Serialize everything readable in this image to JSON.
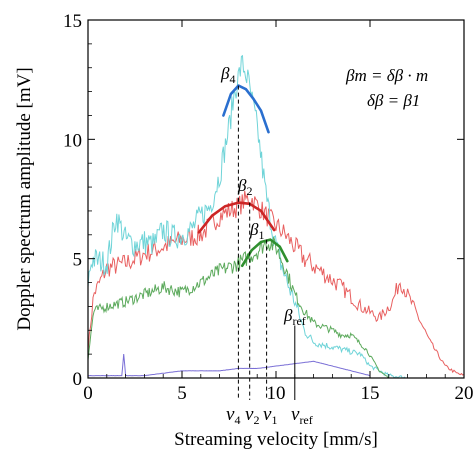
{
  "chart_data": {
    "type": "line",
    "xlabel": "Streaming velocity [mm/s]",
    "ylabel": "Doppler spectrum amplitude [mV]",
    "xlim": [
      0,
      20
    ],
    "ylim": [
      0,
      15
    ],
    "xticks": [
      0,
      5,
      10,
      15,
      20
    ],
    "yticks": [
      0,
      5,
      10,
      15
    ],
    "xtick_labels": [
      "0",
      "5",
      "10",
      "15",
      "20"
    ],
    "ytick_labels": [
      "0",
      "5",
      "10",
      "15"
    ],
    "grid": false,
    "series": [
      {
        "color": "#e86060",
        "x": [
          0,
          0.3,
          1,
          2,
          3,
          4,
          5,
          6,
          7,
          8,
          8.6,
          9.5,
          10.5,
          11.5,
          12.5,
          13.5,
          14.5,
          15.5,
          16.2,
          16.6,
          17.3,
          18.2,
          19,
          19.6,
          20
        ],
        "y": [
          1.2,
          3.5,
          4.6,
          4.8,
          5.2,
          5.5,
          5.8,
          6.0,
          6.8,
          7.2,
          7.6,
          6.8,
          6.0,
          5.0,
          4.4,
          3.8,
          3.0,
          2.5,
          3.2,
          4.1,
          3.0,
          1.5,
          0.5,
          0.2,
          0.1
        ]
      },
      {
        "color": "#70d4d8",
        "x": [
          0,
          0.2,
          1,
          1.5,
          2,
          2.5,
          3,
          3.5,
          4,
          4.5,
          5,
          5.5,
          6,
          6.5,
          7,
          7.5,
          7.8,
          8.2,
          8.5,
          9,
          9.5,
          10,
          10.5,
          11,
          11.5,
          12,
          13,
          14,
          14.5,
          15,
          16,
          17
        ],
        "y": [
          4.0,
          5.0,
          4.8,
          6.8,
          5.8,
          5.6,
          5.7,
          5.6,
          6.2,
          5.9,
          6.0,
          6.2,
          6.8,
          7.2,
          8.5,
          10.5,
          12.0,
          13.2,
          12.5,
          10.5,
          7.5,
          5.5,
          4.2,
          3.2,
          2.0,
          1.5,
          1.3,
          1.1,
          1.0,
          0.5,
          0.1,
          0.0
        ]
      },
      {
        "color": "#5daa5d",
        "x": [
          0,
          0.3,
          1,
          2,
          3,
          4,
          5,
          6,
          7,
          8,
          9,
          9.5,
          10,
          10.5,
          11,
          11.5,
          12,
          13,
          13.5,
          14,
          14.8,
          15.5,
          16
        ],
        "y": [
          0.8,
          2.8,
          3.0,
          3.2,
          3.5,
          3.8,
          3.6,
          4.0,
          4.5,
          4.8,
          5.3,
          5.7,
          5.5,
          4.6,
          3.5,
          2.8,
          2.3,
          2.0,
          1.8,
          1.8,
          1.2,
          0.3,
          0.0
        ]
      },
      {
        "color": "#7a6fd6",
        "x": [
          0,
          1,
          1.8,
          1.9,
          2.0,
          2.1,
          3,
          5,
          7,
          8,
          9,
          10,
          11,
          12,
          13,
          14,
          15
        ],
        "y": [
          0.1,
          0.1,
          0.1,
          1.0,
          0.1,
          0.1,
          0.1,
          0.3,
          0.3,
          0.4,
          0.4,
          0.5,
          0.6,
          0.7,
          0.5,
          0.3,
          0.1
        ]
      }
    ],
    "fits": [
      {
        "label": "β4",
        "color": "#2a6fcf",
        "x": [
          7.2,
          7.6,
          8.0,
          8.4,
          8.8,
          9.2,
          9.6
        ],
        "y": [
          11.0,
          11.9,
          12.25,
          12.1,
          11.7,
          11.2,
          10.3
        ]
      },
      {
        "label": "β2",
        "color": "#cc2626",
        "x": [
          5.9,
          6.6,
          7.3,
          8.0,
          8.6,
          9.2,
          9.9
        ],
        "y": [
          6.1,
          6.8,
          7.2,
          7.35,
          7.3,
          7.0,
          6.2
        ]
      },
      {
        "label": "β1",
        "color": "#2f8f2f",
        "x": [
          8.2,
          8.7,
          9.2,
          9.7,
          10.2,
          10.6
        ],
        "y": [
          4.7,
          5.35,
          5.7,
          5.8,
          5.5,
          4.9
        ]
      }
    ],
    "vlines": [
      {
        "label": "v4",
        "x": 8.0,
        "ytop": 12.25,
        "dashed": true
      },
      {
        "label": "v2",
        "x": 8.6,
        "ytop": 7.35,
        "dashed": true
      },
      {
        "label": "v1",
        "x": 9.5,
        "ytop": 5.8,
        "dashed": true
      },
      {
        "label": "vref",
        "x": 11.0,
        "ytop": 2.2,
        "dashed": false
      }
    ],
    "annotations": {
      "beta_ref": "β",
      "beta_ref_sub": "ref",
      "eq1": "βm = δβ · m",
      "eq2": "δβ = β1"
    },
    "labels": {
      "b4_main": "β",
      "b4_sub": "4",
      "b2_main": "β",
      "b2_sub": "2",
      "b1_main": "β",
      "b1_sub": "1",
      "v4_main": "v",
      "v4_sub": "4",
      "v2_main": "v",
      "v2_sub": "2",
      "v1_main": "v",
      "v1_sub": "1",
      "vref_main": "v",
      "vref_sub": "ref"
    }
  }
}
